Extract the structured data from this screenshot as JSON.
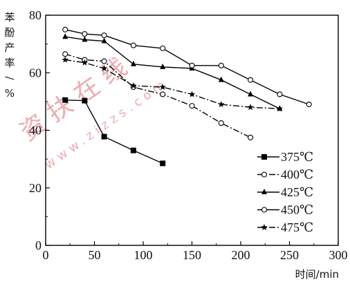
{
  "chart_data": {
    "type": "line",
    "title": "",
    "xlabel": "时间/min",
    "ylabel": "苯酚产率/%",
    "xlim": [
      0,
      300
    ],
    "ylim": [
      0,
      80
    ],
    "x_ticks": [
      "0",
      "50",
      "100",
      "150",
      "200",
      "250",
      "300"
    ],
    "y_ticks": [
      "0",
      "20",
      "40",
      "60",
      "80"
    ],
    "grid": false,
    "legend_position": "bottom-right",
    "series": [
      {
        "name": "375℃",
        "marker": "square",
        "line_style": "solid",
        "x": [
          20,
          40,
          60,
          90,
          120
        ],
        "y": [
          50.5,
          50.3,
          37.8,
          33.0,
          28.5
        ]
      },
      {
        "name": "400℃",
        "marker": "open-circle",
        "line_style": "dash-dot",
        "x": [
          20,
          40,
          60,
          90,
          120,
          150,
          180,
          210
        ],
        "y": [
          66.5,
          64.5,
          64.0,
          55.0,
          52.5,
          48.5,
          42.5,
          37.5
        ]
      },
      {
        "name": "425℃",
        "marker": "triangle",
        "line_style": "solid",
        "x": [
          20,
          40,
          60,
          90,
          120,
          150,
          180,
          210,
          240
        ],
        "y": [
          72.5,
          71.5,
          71.0,
          63.0,
          62.0,
          61.5,
          57.5,
          52.5,
          47.5
        ]
      },
      {
        "name": "450℃",
        "marker": "open-circle",
        "line_style": "solid",
        "x": [
          20,
          40,
          60,
          90,
          120,
          150,
          180,
          210,
          240,
          270
        ],
        "y": [
          75.0,
          73.5,
          73.0,
          69.5,
          68.5,
          62.5,
          62.5,
          57.5,
          52.5,
          49.0
        ]
      },
      {
        "name": "475℃",
        "marker": "star",
        "line_style": "dash-dot",
        "x": [
          20,
          40,
          60,
          90,
          120,
          150,
          180,
          210,
          240
        ],
        "y": [
          64.5,
          63.5,
          61.5,
          55.5,
          55.0,
          52.5,
          49.0,
          48.0,
          47.5
        ]
      }
    ]
  },
  "watermark": {
    "text": "资 扶 在 线",
    "url": "www.zizzs.com",
    "color": "#e06a70"
  }
}
